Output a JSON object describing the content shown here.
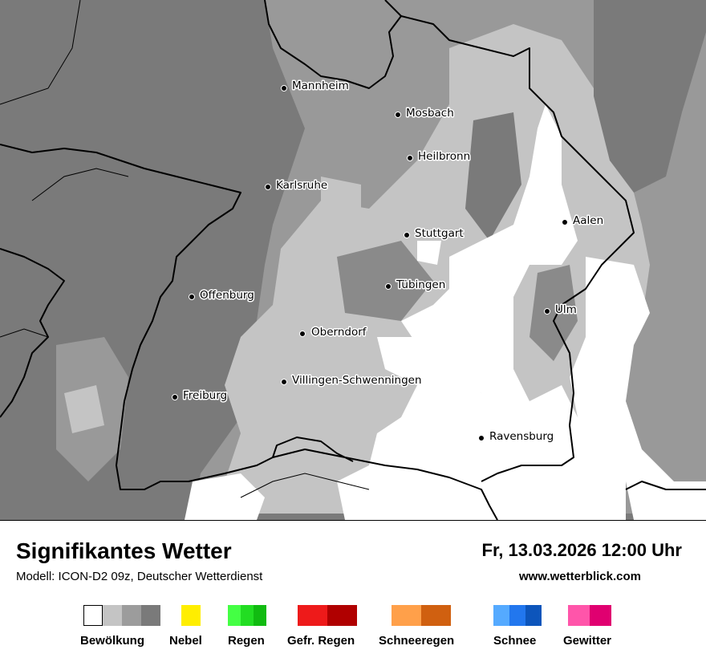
{
  "map": {
    "cities": [
      {
        "name": "Mannheim"
      },
      {
        "name": "Mosbach"
      },
      {
        "name": "Heilbronn"
      },
      {
        "name": "Karlsruhe"
      },
      {
        "name": "Aalen"
      },
      {
        "name": "Stuttgart"
      },
      {
        "name": "Tübingen"
      },
      {
        "name": "Offenburg"
      },
      {
        "name": "Ulm"
      },
      {
        "name": "Oberndorf"
      },
      {
        "name": "Villingen-Schwenningen"
      },
      {
        "name": "Freiburg"
      },
      {
        "name": "Ravensburg"
      }
    ],
    "colors": {
      "overcast": "#7a7a7a",
      "cloudy": "#999999",
      "partly": "#c4c4c4",
      "clear": "#ffffff"
    }
  },
  "footer": {
    "title": "Signifikantes Wetter",
    "model": "Modell: ICON-D2 09z, Deutscher Wetterdienst",
    "datetime": "Fr, 13.03.2026 12:00 Uhr",
    "website": "www.wetterblick.com"
  },
  "legend": [
    {
      "label": "Bewölkung",
      "colors": [
        "#ffffff",
        "#c4c4c4",
        "#9c9c9c",
        "#7a7a7a"
      ]
    },
    {
      "label": "Nebel",
      "colors": [
        "#ffee00"
      ]
    },
    {
      "label": "Regen",
      "colors": [
        "#44ff44",
        "#22dd22",
        "#11bb11"
      ]
    },
    {
      "label": "Gefr. Regen",
      "colors": [
        "#ee1a1a",
        "#b00000"
      ]
    },
    {
      "label": "Schneeregen",
      "colors": [
        "#ffa04a",
        "#d06010"
      ]
    },
    {
      "label": "Schnee",
      "colors": [
        "#55aaff",
        "#2277ee",
        "#0d55bb"
      ]
    },
    {
      "label": "Gewitter",
      "colors": [
        "#ff55aa",
        "#e00070"
      ]
    }
  ]
}
